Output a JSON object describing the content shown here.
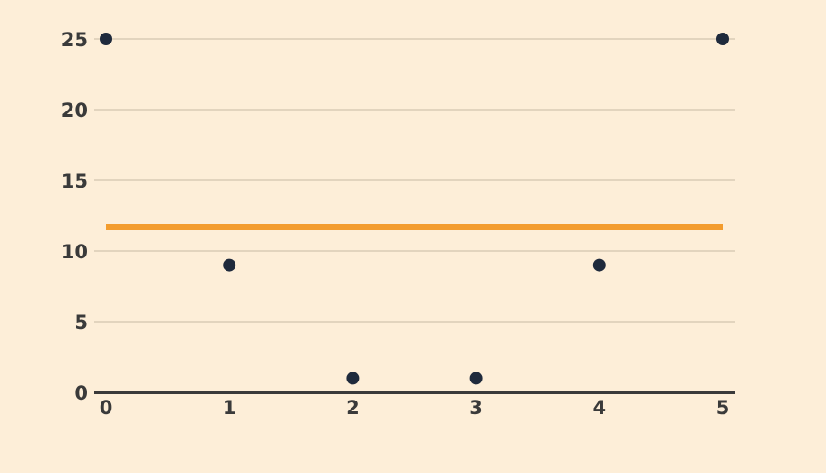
{
  "chart_data": {
    "type": "scatter",
    "title": "",
    "xlabel": "",
    "ylabel": "",
    "x": [
      0,
      1,
      2,
      3,
      4,
      5
    ],
    "series": [
      {
        "values": [
          25,
          9,
          1,
          1,
          9,
          25
        ]
      }
    ],
    "reference_line": {
      "type": "horizontal",
      "value": 11.7,
      "color": "#f39c2e"
    },
    "xlim": [
      0,
      5
    ],
    "ylim": [
      0,
      25
    ],
    "x_ticks": [
      "0",
      "1",
      "2",
      "3",
      "4",
      "5"
    ],
    "y_ticks": [
      "0",
      "5",
      "10",
      "15",
      "20",
      "25"
    ],
    "grid": {
      "horizontal": true,
      "vertical": false
    },
    "colors": {
      "background": "#fdeed8",
      "points": "#1f2a3c",
      "gridline": "#d9cbb6",
      "axis": "#3a3a3a",
      "tick_text": "#3a3a3a"
    }
  }
}
